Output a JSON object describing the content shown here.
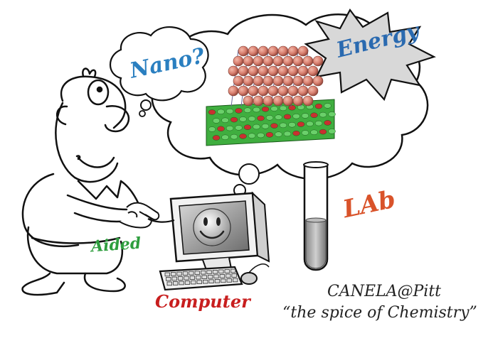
{
  "labels": {
    "nano": "Nano?",
    "energy": "Energy",
    "lab": "LAb",
    "aided": "Aided",
    "computer": "Computer"
  },
  "caption": {
    "line1": "CANELA@Pitt",
    "line2": "“the spice of Chemistry”"
  },
  "colors": {
    "nano": "#2a7fc0",
    "energy": "#2a6ab0",
    "lab": "#d9532a",
    "aided": "#2e9e3e",
    "computer": "#c81e1e",
    "atoms": "#d98070",
    "substrate_green": "#3fae3f",
    "substrate_red": "#c83030"
  }
}
